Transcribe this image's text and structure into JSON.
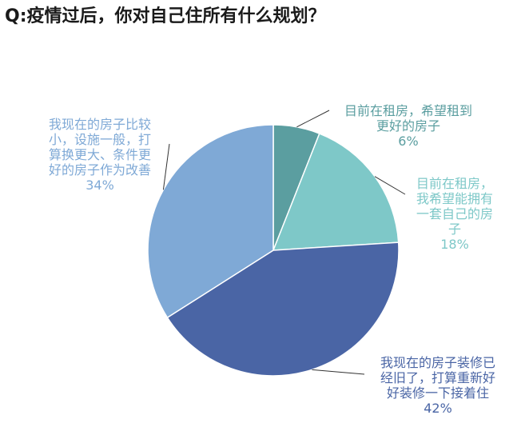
{
  "title": "Q:疫情过后，你对自己住所有什么规划？",
  "chart_data": {
    "type": "pie",
    "slices": [
      {
        "label": "目前在租房，希望租到更好的房子",
        "value": 6,
        "value_label": "6%",
        "color": "#5b9ea0"
      },
      {
        "label": "目前在租房，我希望能拥有一套自己的房子",
        "value": 18,
        "value_label": "18%",
        "color": "#7ec8c8"
      },
      {
        "label": "我现在的房子装修已经旧了，打算重新好好装修一下接着住",
        "value": 42,
        "value_label": "42%",
        "color": "#4a65a5"
      },
      {
        "label": "我现在的房子比较小，设施一般，打算换更大、条件更好的房子作为改善",
        "value": 34,
        "value_label": "34%",
        "color": "#7fa9d6"
      }
    ]
  },
  "labels": [
    {
      "text": "目前在租房，希望租到\n更好的房子",
      "pct": "6%",
      "color": "#5b9ea0"
    },
    {
      "text": "目前在租房，\n我希望能拥有\n一套自己的房\n子",
      "pct": "18%",
      "color": "#7ec8c8"
    },
    {
      "text": "我现在的房子装修已\n经旧了，打算重新好\n好装修一下接着住",
      "pct": "42%",
      "color": "#4a65a5"
    },
    {
      "text": "我现在的房子比较\n小，设施一般，打\n算换更大、条件更\n好的房子作为改善",
      "pct": "34%",
      "color": "#7fa9d6"
    }
  ]
}
